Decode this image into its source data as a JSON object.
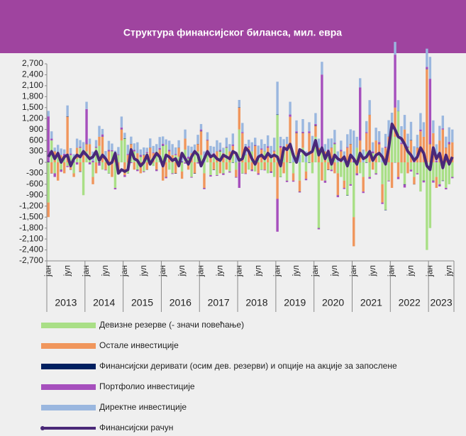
{
  "chart_data": {
    "type": "bar",
    "title": "Структура финансијског биланса, мил. евра",
    "categories": [
      "јан",
      null,
      null,
      null,
      null,
      null,
      "јул",
      null,
      null,
      null,
      null,
      null,
      "јан",
      null,
      null,
      null,
      null,
      null,
      "јул",
      null,
      null,
      null,
      null,
      null,
      "јан",
      null,
      null,
      null,
      null,
      null,
      "јул",
      null,
      null,
      null,
      null,
      null,
      "јан",
      null,
      null,
      null,
      null,
      null,
      "јул",
      null,
      null,
      null,
      null,
      null,
      "јан",
      null,
      null,
      null,
      null,
      null,
      "јул",
      null,
      null,
      null,
      null,
      null,
      "јан",
      null,
      null,
      null,
      null,
      null,
      "јул",
      null,
      null,
      null,
      null,
      null,
      "јан",
      null,
      null,
      null,
      null,
      null,
      "јул",
      null,
      null,
      null,
      null,
      null,
      "јан",
      null,
      null,
      null,
      null,
      null,
      "јул",
      null,
      null,
      null,
      null,
      null,
      "јан",
      null,
      null,
      null,
      null,
      null,
      "јул",
      null,
      null,
      null,
      null,
      null,
      "јан",
      null,
      null,
      null,
      null,
      null,
      "јул",
      null,
      null,
      null,
      null,
      null,
      "јан",
      null,
      null,
      null,
      null,
      null,
      "јул",
      null
    ],
    "year_labels": [
      "2013",
      "2014",
      "2015",
      "2016",
      "2017",
      "2018",
      "2019",
      "2020",
      "2021",
      "2022",
      "2023"
    ],
    "ylim": [
      -2700,
      2700
    ],
    "yticks": [
      {
        "value": 2700,
        "label": "2,700"
      },
      {
        "value": 2400,
        "label": "2,400"
      },
      {
        "value": 2100,
        "label": "2,100"
      },
      {
        "value": 1800,
        "label": "1,800"
      },
      {
        "value": 1500,
        "label": "1,500"
      },
      {
        "value": 1200,
        "label": "1,200"
      },
      900,
      600,
      300,
      0,
      -300,
      -600,
      -900,
      {
        "value": -1200,
        "label": "-1,200"
      },
      {
        "value": -1500,
        "label": "-1,500"
      },
      {
        "value": -1800,
        "label": "-1,800"
      },
      {
        "value": -2100,
        "label": "-2,100"
      },
      {
        "value": -2400,
        "label": "-2,400"
      },
      {
        "value": -2700,
        "label": "-2,700"
      }
    ],
    "series": [
      {
        "name": "Девизне резерве (- значи повећање)",
        "color": "#a9df86",
        "values": [
          -1100,
          600,
          -300,
          200,
          -200,
          150,
          -100,
          200,
          -300,
          100,
          400,
          -900,
          300,
          200,
          -400,
          400,
          450,
          -200,
          100,
          -300,
          300,
          -700,
          200,
          600,
          650,
          -300,
          200,
          300,
          -200,
          150,
          -250,
          250,
          100,
          -100,
          300,
          200,
          450,
          480,
          -200,
          -300,
          200,
          150,
          -250,
          350,
          100,
          -400,
          250,
          300,
          200,
          -300,
          300,
          -350,
          200,
          -350,
          300,
          -300,
          400,
          -250,
          200,
          -200,
          900,
          -300,
          200,
          -200,
          300,
          -250,
          150,
          -200,
          300,
          -300,
          200,
          -400,
          1300,
          -400,
          300,
          -500,
          350,
          -300,
          200,
          -500,
          400,
          -250,
          200,
          -300,
          700,
          -1800,
          400,
          -500,
          300,
          -200,
          500,
          -300,
          -400,
          -500,
          -900,
          -600,
          -1500,
          400,
          -300,
          -400,
          300,
          -400,
          250,
          -300,
          200,
          -600,
          -1300,
          -500,
          900,
          700,
          1400,
          -300,
          -600,
          400,
          -200,
          -400,
          -300,
          -800,
          -500,
          -2400,
          -1800,
          -500,
          -400,
          -600,
          -500,
          -700,
          -600,
          -400
        ]
      },
      {
        "name": "Остале инвестиције",
        "color": "#f0965c",
        "values": [
          -400,
          -300,
          300,
          -500,
          200,
          -300,
          1250,
          -200,
          -100,
          300,
          -250,
          200,
          200,
          300,
          -200,
          -300,
          250,
          700,
          -200,
          300,
          -400,
          200,
          -300,
          300,
          -350,
          200,
          300,
          -200,
          250,
          -300,
          200,
          -200,
          300,
          250,
          -200,
          150,
          -500,
          -400,
          300,
          200,
          -300,
          250,
          -200,
          300,
          -200,
          250,
          -300,
          200,
          650,
          -400,
          300,
          200,
          -200,
          300,
          -300,
          250,
          -200,
          300,
          250,
          -200,
          600,
          800,
          -300,
          400,
          -200,
          450,
          -300,
          350,
          -200,
          400,
          -250,
          300,
          -1000,
          400,
          -300,
          500,
          900,
          -200,
          600,
          -300,
          400,
          -200,
          600,
          300,
          300,
          400,
          -500,
          300,
          -200,
          400,
          -300,
          -600,
          300,
          -200,
          400,
          500,
          -800,
          -300,
          600,
          -400,
          500,
          1300,
          -200,
          600,
          300,
          -500,
          400,
          700,
          -700,
          800,
          -400,
          500,
          900,
          -300,
          600,
          -200,
          400,
          850,
          700,
          2550,
          500,
          800,
          -300,
          600,
          900,
          400,
          500,
          550
        ]
      },
      {
        "name": "Финансијски деривати (осим дев. резерви) и опције на акције за запослене",
        "color": "#002060",
        "values": [
          10,
          -5,
          5,
          0,
          -10,
          5,
          10,
          -5,
          5,
          0,
          -10,
          5,
          10,
          -5,
          5,
          0,
          -10,
          5,
          10,
          -5,
          5,
          0,
          -10,
          5,
          10,
          -5,
          5,
          0,
          -10,
          5,
          10,
          -5,
          5,
          0,
          -10,
          5,
          10,
          -5,
          5,
          0,
          -10,
          5,
          10,
          -5,
          5,
          0,
          -10,
          5,
          10,
          -5,
          5,
          0,
          -10,
          5,
          10,
          -5,
          5,
          0,
          -10,
          5,
          10,
          -5,
          5,
          0,
          -10,
          5,
          10,
          -5,
          5,
          0,
          -10,
          5,
          10,
          -5,
          5,
          0,
          -10,
          5,
          10,
          -5,
          5,
          0,
          -10,
          5,
          10,
          -5,
          5,
          0,
          -10,
          5,
          10,
          -5,
          5,
          0,
          -10,
          5,
          10,
          -5,
          5,
          0,
          -10,
          5,
          10,
          -5,
          5,
          0,
          -10,
          5,
          10,
          -5,
          5,
          0,
          -10,
          5,
          10,
          -5,
          5,
          0,
          -10,
          5,
          10,
          -5,
          5,
          0,
          -10,
          5,
          10,
          -5
        ]
      },
      {
        "name": "Портфолио инвестиције",
        "color": "#a64fbd",
        "values": [
          1250,
          50,
          -100,
          30,
          -50,
          80,
          -30,
          40,
          20,
          -60,
          30,
          50,
          950,
          -50,
          40,
          30,
          -80,
          60,
          -20,
          40,
          30,
          -40,
          20,
          50,
          -50,
          30,
          -20,
          40,
          -30,
          50,
          -20,
          30,
          -40,
          20,
          -30,
          40,
          50,
          -30,
          40,
          -20,
          30,
          -40,
          20,
          -30,
          50,
          -20,
          40,
          -30,
          40,
          -30,
          20,
          -40,
          50,
          -20,
          30,
          -40,
          20,
          -30,
          40,
          -20,
          -700,
          30,
          -20,
          40,
          -30,
          20,
          -40,
          30,
          -20,
          40,
          -30,
          20,
          -900,
          50,
          30,
          -40,
          60,
          -30,
          40,
          -20,
          30,
          -40,
          50,
          20,
          40,
          -30,
          2000,
          -60,
          50,
          -40,
          30,
          -50,
          40,
          -30,
          20,
          -40,
          60,
          -50,
          1450,
          -40,
          30,
          -50,
          40,
          -30,
          50,
          -40,
          30,
          -20,
          50,
          1450,
          -60,
          40,
          -80,
          30,
          -50,
          40,
          -30,
          50,
          -40,
          60,
          1780,
          -50,
          40,
          -60,
          30,
          -40,
          50,
          -30
        ]
      },
      {
        "name": "Директне инвестиције",
        "color": "#9ab7df",
        "values": [
          150,
          200,
          100,
          250,
          180,
          120,
          300,
          150,
          200,
          250,
          180,
          300,
          200,
          150,
          250,
          180,
          300,
          150,
          200,
          250,
          180,
          120,
          200,
          300,
          150,
          250,
          200,
          180,
          300,
          150,
          200,
          120,
          250,
          180,
          200,
          300,
          200,
          150,
          250,
          300,
          180,
          200,
          150,
          250,
          300,
          180,
          200,
          250,
          150,
          300,
          200,
          250,
          180,
          300,
          200,
          150,
          250,
          200,
          300,
          250,
          200,
          250,
          300,
          180,
          250,
          200,
          300,
          250,
          200,
          300,
          250,
          350,
          900,
          250,
          300,
          200,
          350,
          250,
          300,
          200,
          350,
          300,
          250,
          400,
          300,
          250,
          350,
          200,
          300,
          250,
          350,
          300,
          250,
          300,
          350,
          400,
          800,
          300,
          250,
          350,
          300,
          400,
          250,
          350,
          300,
          400,
          350,
          450,
          400,
          350,
          300,
          450,
          400,
          350,
          500,
          400,
          350,
          450,
          400,
          500,
          600,
          350,
          450,
          400,
          350,
          300,
          400,
          350
        ]
      },
      {
        "name": "Финансијски рачун",
        "color": "#4a2878",
        "kind": "line",
        "values": [
          150,
          300,
          100,
          250,
          0,
          150,
          200,
          -100,
          100,
          200,
          150,
          300,
          200,
          100,
          150,
          300,
          50,
          200,
          100,
          -50,
          0,
          250,
          -300,
          -200,
          -250,
          -200,
          350,
          100,
          50,
          -100,
          0,
          200,
          -50,
          100,
          250,
          150,
          -100,
          200,
          150,
          50,
          100,
          -100,
          250,
          100,
          -50,
          150,
          300,
          200,
          -100,
          100,
          300,
          150,
          200,
          100,
          50,
          200,
          150,
          100,
          300,
          250,
          50,
          100,
          400,
          300,
          100,
          -50,
          150,
          200,
          100,
          250,
          150,
          200,
          150,
          -100,
          400,
          350,
          500,
          200,
          0,
          350,
          300,
          200,
          250,
          300,
          600,
          200,
          400,
          100,
          300,
          -50,
          200,
          100,
          50,
          150,
          -100,
          200,
          100,
          -50,
          250,
          100,
          150,
          300,
          50,
          200,
          250,
          150,
          -50,
          400,
          1050,
          900,
          700,
          650,
          500,
          300,
          200,
          50,
          150,
          400,
          250,
          -100,
          -200,
          400,
          100,
          250,
          -150,
          200,
          -50,
          150
        ]
      }
    ]
  }
}
